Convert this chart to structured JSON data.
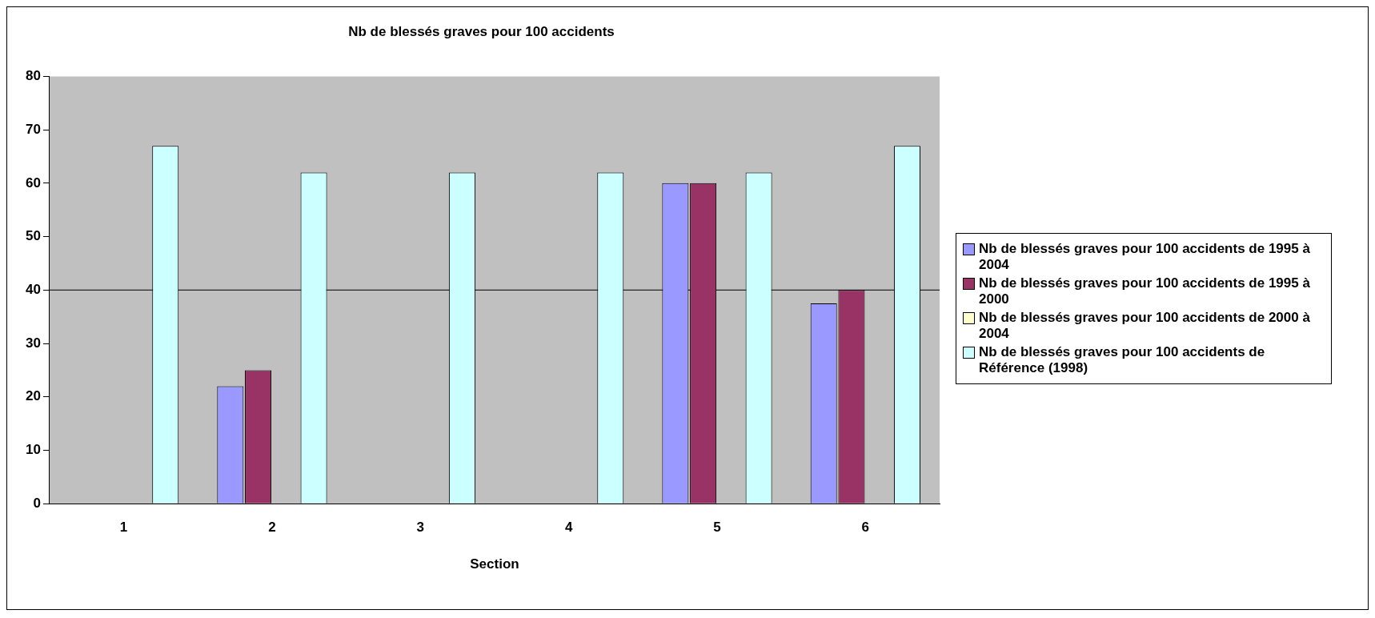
{
  "chart_data": {
    "type": "bar",
    "title": "Nb de blessés graves pour 100 accidents",
    "xlabel": "Section",
    "categories": [
      "1",
      "2",
      "3",
      "4",
      "5",
      "6"
    ],
    "series": [
      {
        "name": "Nb de blessés graves pour 100 accidents de 1995 à 2004",
        "color": "#9999ff",
        "values": [
          null,
          22,
          null,
          null,
          60,
          37.5
        ]
      },
      {
        "name": "Nb de blessés graves pour 100 accidents de 1995 à 2000",
        "color": "#993366",
        "values": [
          null,
          25,
          null,
          null,
          60,
          40
        ]
      },
      {
        "name": "Nb de blessés graves pour 100 accidents de 2000 à 2004",
        "color": "#ffffcc",
        "values": [
          null,
          null,
          null,
          null,
          null,
          null
        ]
      },
      {
        "name": "Nb de blessés graves pour 100 accidents de Référence (1998)",
        "color": "#ccffff",
        "values": [
          67,
          62,
          62,
          62,
          62,
          67
        ]
      }
    ],
    "ylim": [
      0,
      80
    ],
    "yticks": [
      0,
      10,
      20,
      30,
      40,
      50,
      60,
      70,
      80
    ],
    "grid": false,
    "legend": "right",
    "ref_lines": [
      {
        "axis": "y",
        "value": 40,
        "color": "#000000"
      }
    ]
  }
}
